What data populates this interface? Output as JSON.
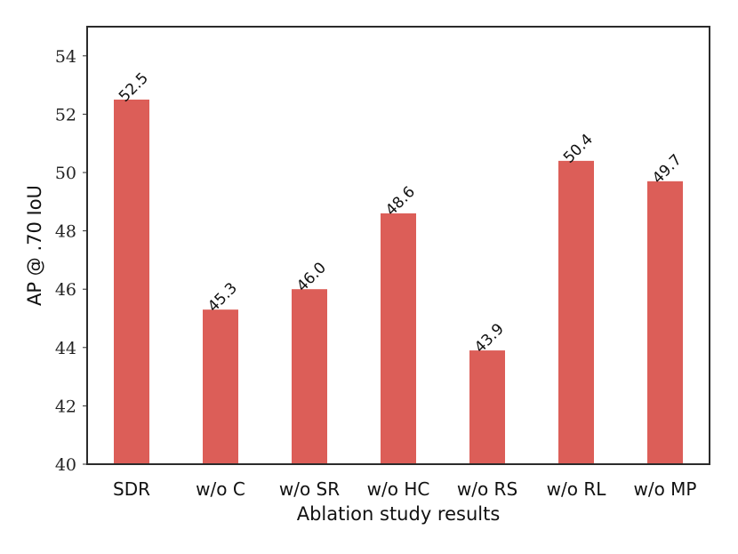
{
  "chart_data": {
    "type": "bar",
    "title": "",
    "xlabel": "Ablation study results",
    "ylabel": "AP @ .70 IoU",
    "categories": [
      "SDR",
      "w/o C",
      "w/o SR",
      "w/o HC",
      "w/o RS",
      "w/o RL",
      "w/o MP"
    ],
    "values": [
      52.5,
      45.3,
      46.0,
      48.6,
      43.9,
      50.4,
      49.7
    ],
    "value_labels": [
      "52.5",
      "45.3",
      "46.0",
      "48.6",
      "43.9",
      "50.4",
      "49.7"
    ],
    "yticks": [
      40,
      42,
      44,
      46,
      48,
      50,
      52,
      54
    ],
    "ylim": [
      40,
      55
    ],
    "bar_color": "#dc5e58",
    "grid": false,
    "legend": "none"
  }
}
